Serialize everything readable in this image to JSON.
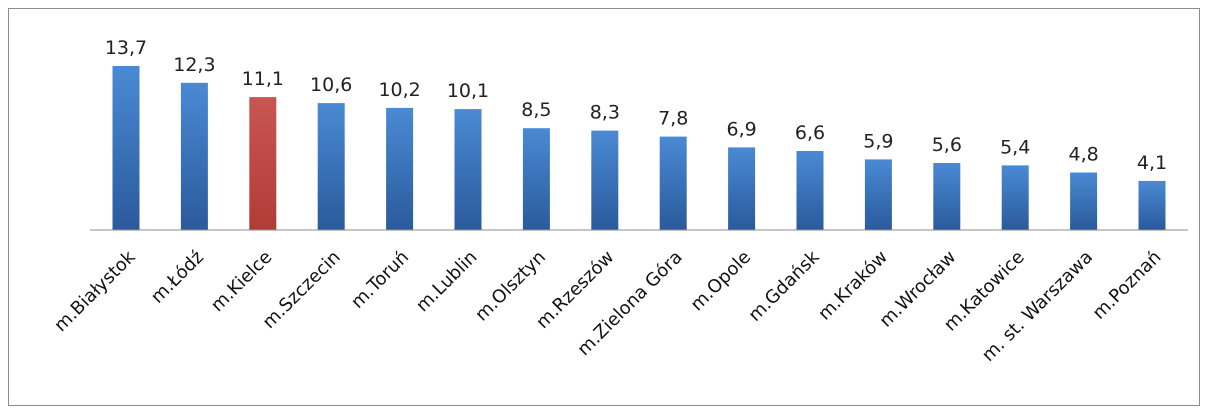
{
  "chart_data": {
    "type": "bar",
    "categories": [
      "m.Białystok",
      "m.Łódź",
      "m.Kielce",
      "m.Szczecin",
      "m.Toruń",
      "m.Lublin",
      "m.Olsztyn",
      "m.Rzeszów",
      "m.Zielona Góra",
      "m.Opole",
      "m.Gdańsk",
      "m.Kraków",
      "m.Wrocław",
      "m.Katowice",
      "m. st. Warszawa",
      "m.Poznań"
    ],
    "values": [
      13.7,
      12.3,
      11.1,
      10.6,
      10.2,
      10.1,
      8.5,
      8.3,
      7.8,
      6.9,
      6.6,
      5.9,
      5.6,
      5.4,
      4.8,
      4.1
    ],
    "value_labels": [
      "13,7",
      "12,3",
      "11,1",
      "10,6",
      "10,2",
      "10,1",
      "8,5",
      "8,3",
      "7,8",
      "6,9",
      "6,6",
      "5,9",
      "5,6",
      "5,4",
      "4,8",
      "4,1"
    ],
    "highlighted_category": "m.Kielce",
    "colors": {
      "bar_top": "#4a8ad4",
      "bar_bottom": "#2a5a9c",
      "highlight_top": "#c85652",
      "highlight_bottom": "#b03c38",
      "axis": "#8c8c8c"
    },
    "ylim": [
      0,
      13.7
    ],
    "grid": false,
    "legend": "none"
  }
}
